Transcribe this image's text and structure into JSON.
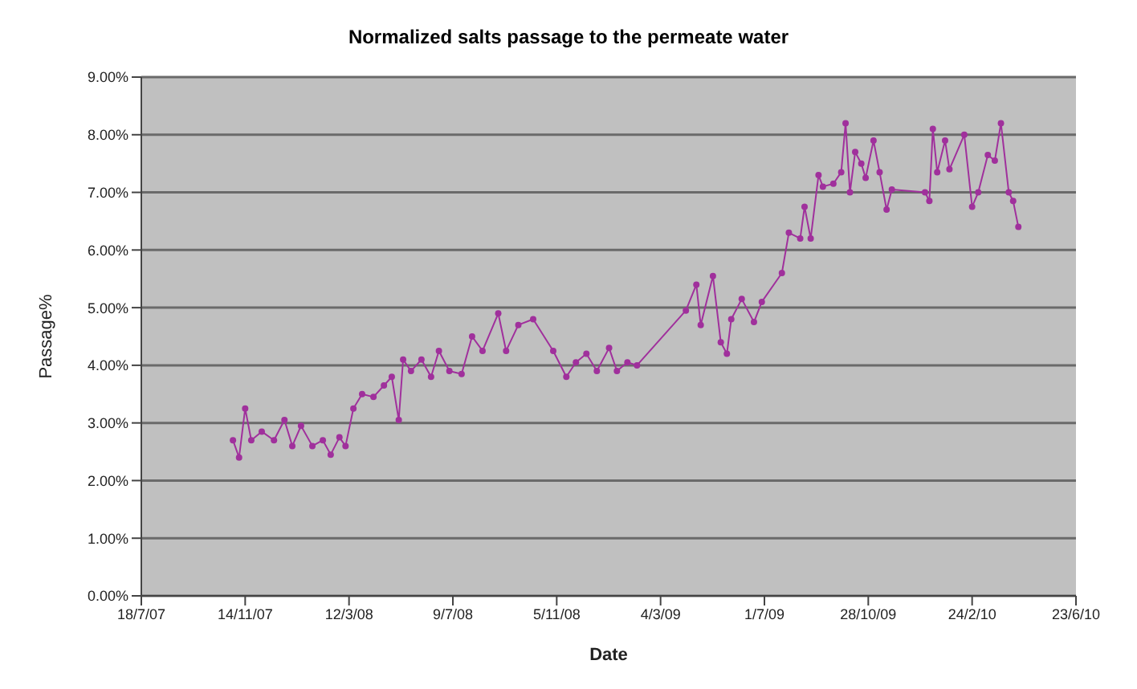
{
  "chart_data": {
    "type": "line",
    "title": "Normalized salts passage to the permeate water",
    "xlabel": "Date",
    "ylabel": "Passage%",
    "x": [
      "2007-10-31",
      "2007-11-07",
      "2007-11-14",
      "2007-11-21",
      "2007-12-03",
      "2007-12-17",
      "2007-12-29",
      "2008-01-07",
      "2008-01-17",
      "2008-01-30",
      "2008-02-11",
      "2008-02-20",
      "2008-03-01",
      "2008-03-08",
      "2008-03-17",
      "2008-03-27",
      "2008-04-09",
      "2008-04-21",
      "2008-04-30",
      "2008-05-08",
      "2008-05-13",
      "2008-05-22",
      "2008-06-03",
      "2008-06-14",
      "2008-06-23",
      "2008-07-05",
      "2008-07-19",
      "2008-07-31",
      "2008-08-12",
      "2008-08-30",
      "2008-09-08",
      "2008-09-22",
      "2008-10-09",
      "2008-11-01",
      "2008-11-16",
      "2008-11-27",
      "2008-12-09",
      "2008-12-21",
      "2009-01-04",
      "2009-01-13",
      "2009-01-25",
      "2009-02-05",
      "2009-04-02",
      "2009-04-14",
      "2009-04-19",
      "2009-05-03",
      "2009-05-12",
      "2009-05-19",
      "2009-05-24",
      "2009-06-05",
      "2009-06-19",
      "2009-06-28",
      "2009-07-21",
      "2009-07-29",
      "2009-08-11",
      "2009-08-16",
      "2009-08-23",
      "2009-09-01",
      "2009-09-06",
      "2009-09-18",
      "2009-09-27",
      "2009-10-02",
      "2009-10-07",
      "2009-10-13",
      "2009-10-20",
      "2009-10-25",
      "2009-11-03",
      "2009-11-10",
      "2009-11-18",
      "2009-11-24",
      "2010-01-01",
      "2010-01-06",
      "2010-01-10",
      "2010-01-15",
      "2010-01-24",
      "2010-01-29",
      "2010-02-15",
      "2010-02-24",
      "2010-03-03",
      "2010-03-14",
      "2010-03-22",
      "2010-03-29",
      "2010-04-07",
      "2010-04-12",
      "2010-04-18"
    ],
    "series": [
      {
        "color": "#a0309c",
        "values": [
          2.7,
          2.4,
          3.25,
          2.7,
          2.85,
          2.7,
          3.05,
          2.6,
          2.95,
          2.6,
          2.7,
          2.45,
          2.75,
          2.6,
          3.25,
          3.5,
          3.45,
          3.65,
          3.8,
          3.05,
          4.1,
          3.9,
          4.1,
          3.8,
          4.25,
          3.9,
          3.85,
          4.5,
          4.25,
          4.9,
          4.25,
          4.7,
          4.8,
          4.25,
          3.8,
          4.05,
          4.2,
          3.9,
          4.3,
          3.9,
          4.05,
          4.0,
          4.95,
          5.4,
          4.7,
          5.55,
          4.4,
          4.2,
          4.8,
          5.15,
          4.75,
          5.1,
          5.6,
          6.3,
          6.2,
          6.75,
          6.2,
          7.3,
          7.1,
          7.15,
          7.35,
          8.2,
          7.0,
          7.7,
          7.5,
          7.25,
          7.9,
          7.35,
          6.7,
          7.05,
          7.0,
          6.85,
          8.1,
          7.35,
          7.9,
          7.4,
          8.0,
          6.75,
          7.0,
          7.65,
          7.55,
          8.2,
          7.0,
          6.85,
          6.4
        ]
      }
    ],
    "xlim": [
      "2007-07-18",
      "2010-06-23"
    ],
    "xticks": [
      {
        "value": "2007-07-18",
        "label": "18/7/07"
      },
      {
        "value": "2007-11-14",
        "label": "14/11/07"
      },
      {
        "value": "2008-03-12",
        "label": "12/3/08"
      },
      {
        "value": "2008-07-09",
        "label": "9/7/08"
      },
      {
        "value": "2008-11-05",
        "label": "5/11/08"
      },
      {
        "value": "2009-03-04",
        "label": "4/3/09"
      },
      {
        "value": "2009-07-01",
        "label": "1/7/09"
      },
      {
        "value": "2009-10-28",
        "label": "28/10/09"
      },
      {
        "value": "2010-02-24",
        "label": "24/2/10"
      },
      {
        "value": "2010-06-23",
        "label": "23/6/10"
      }
    ],
    "ylim": [
      0,
      9
    ],
    "yticks": [
      {
        "value": 0,
        "label": "0.00%"
      },
      {
        "value": 1,
        "label": "1.00%"
      },
      {
        "value": 2,
        "label": "2.00%"
      },
      {
        "value": 3,
        "label": "3.00%"
      },
      {
        "value": 4,
        "label": "4.00%"
      },
      {
        "value": 5,
        "label": "5.00%"
      },
      {
        "value": 6,
        "label": "6.00%"
      },
      {
        "value": 7,
        "label": "7.00%"
      },
      {
        "value": 8,
        "label": "8.00%"
      },
      {
        "value": 9,
        "label": "9.00%"
      }
    ],
    "grid": "y",
    "marker": "circle",
    "line_style": "solid"
  }
}
